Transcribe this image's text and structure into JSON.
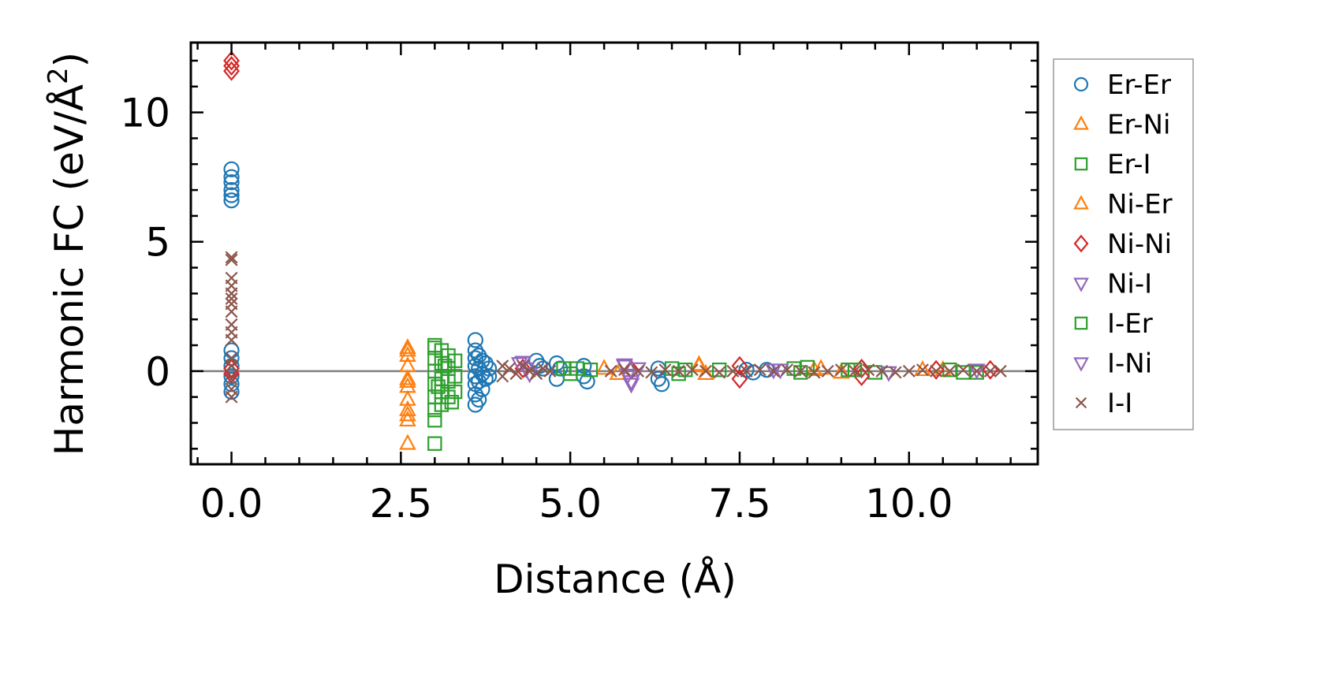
{
  "chart_data": {
    "type": "scatter",
    "title": "",
    "xlabel": "Distance (Å)",
    "ylabel": "Harmonic FC (eV/Å",
    "ylabel_superscript": "2",
    "ylabel_close": ")",
    "xlim": [
      -0.6,
      11.9
    ],
    "ylim": [
      -3.6,
      12.7
    ],
    "x_ticks": [
      0.0,
      2.5,
      5.0,
      7.5,
      10.0
    ],
    "x_tick_labels": [
      "0.0",
      "2.5",
      "5.0",
      "7.5",
      "10.0"
    ],
    "y_ticks": [
      0,
      5,
      10
    ],
    "y_tick_labels": [
      "0",
      "5",
      "10"
    ],
    "x_minor_step": 0.5,
    "y_minor_step": 1,
    "zero_line": true,
    "legend_position": "outside-right",
    "series": [
      {
        "name": "Er-Er",
        "marker": "circle",
        "color": "#1f77b4",
        "points": [
          [
            0,
            7.8
          ],
          [
            0,
            7.5
          ],
          [
            0,
            7.3
          ],
          [
            0,
            7.0
          ],
          [
            0,
            6.8
          ],
          [
            0,
            6.6
          ],
          [
            0,
            0.8
          ],
          [
            0,
            0.5
          ],
          [
            0,
            0.2
          ],
          [
            0,
            -0.2
          ],
          [
            0,
            -0.5
          ],
          [
            0,
            -0.8
          ],
          [
            3.6,
            1.2
          ],
          [
            3.6,
            0.8
          ],
          [
            3.6,
            0.5
          ],
          [
            3.6,
            0.2
          ],
          [
            3.6,
            -0.2
          ],
          [
            3.6,
            -0.5
          ],
          [
            3.6,
            -0.9
          ],
          [
            3.6,
            -1.3
          ],
          [
            3.65,
            0.6
          ],
          [
            3.65,
            0.1
          ],
          [
            3.65,
            -0.4
          ],
          [
            3.65,
            -1.1
          ],
          [
            3.7,
            0.4
          ],
          [
            3.7,
            -0.1
          ],
          [
            3.7,
            -0.7
          ],
          [
            3.75,
            0.3
          ],
          [
            3.75,
            -0.3
          ],
          [
            3.8,
            0.1
          ],
          [
            3.8,
            -0.2
          ],
          [
            4.5,
            0.4
          ],
          [
            4.55,
            0.2
          ],
          [
            4.6,
            0.1
          ],
          [
            4.8,
            0.3
          ],
          [
            4.8,
            -0.3
          ],
          [
            4.85,
            0.1
          ],
          [
            5.2,
            0.2
          ],
          [
            5.2,
            -0.2
          ],
          [
            5.25,
            -0.4
          ],
          [
            6.3,
            0.1
          ],
          [
            6.3,
            -0.3
          ],
          [
            6.35,
            -0.5
          ],
          [
            7.6,
            0.05
          ],
          [
            7.7,
            -0.05
          ],
          [
            7.9,
            0.05
          ]
        ]
      },
      {
        "name": "Er-Ni",
        "marker": "triangle-up",
        "color": "#ff7f0e",
        "points": [
          [
            2.6,
            0.9
          ],
          [
            2.6,
            0.6
          ],
          [
            2.6,
            0.2
          ],
          [
            2.6,
            -0.3
          ],
          [
            2.6,
            -0.6
          ],
          [
            2.6,
            -1.1
          ],
          [
            2.6,
            -1.5
          ],
          [
            2.6,
            -1.9
          ],
          [
            2.6,
            -2.8
          ],
          [
            5.5,
            0.1
          ],
          [
            5.7,
            -0.1
          ],
          [
            6.9,
            0.2
          ],
          [
            7.0,
            -0.1
          ],
          [
            8.6,
            0.05
          ],
          [
            9.0,
            -0.05
          ],
          [
            10.5,
            0.05
          ]
        ]
      },
      {
        "name": "Er-I",
        "marker": "square",
        "color": "#2ca02c",
        "points": [
          [
            3.0,
            1.0
          ],
          [
            3.0,
            0.5
          ],
          [
            3.0,
            0.0
          ],
          [
            3.0,
            -0.5
          ],
          [
            3.0,
            -1.0
          ],
          [
            3.0,
            -1.5
          ],
          [
            3.0,
            -1.9
          ],
          [
            3.0,
            -2.8
          ],
          [
            3.1,
            0.8
          ],
          [
            3.1,
            0.3
          ],
          [
            3.1,
            -0.3
          ],
          [
            3.1,
            -0.8
          ],
          [
            3.1,
            -1.3
          ],
          [
            3.2,
            0.6
          ],
          [
            3.2,
            0.1
          ],
          [
            3.2,
            -0.4
          ],
          [
            3.2,
            -1.0
          ],
          [
            3.3,
            0.4
          ],
          [
            3.3,
            -0.2
          ],
          [
            3.3,
            -0.8
          ],
          [
            4.9,
            0.1
          ],
          [
            5.0,
            -0.1
          ],
          [
            5.3,
            0.05
          ],
          [
            6.5,
            0.1
          ],
          [
            6.6,
            -0.1
          ],
          [
            7.2,
            0.05
          ],
          [
            8.3,
            0.1
          ],
          [
            8.4,
            -0.05
          ],
          [
            9.1,
            0.05
          ],
          [
            9.5,
            -0.05
          ],
          [
            10.6,
            0.05
          ],
          [
            11.0,
            -0.05
          ]
        ]
      },
      {
        "name": "Ni-Er",
        "marker": "triangle-up",
        "color": "#ff7f0e",
        "points": [
          [
            2.6,
            0.8
          ],
          [
            2.6,
            -0.4
          ],
          [
            2.6,
            -1.7
          ],
          [
            6.9,
            0.25
          ],
          [
            8.7,
            0.1
          ],
          [
            10.2,
            0.05
          ]
        ]
      },
      {
        "name": "Ni-Ni",
        "marker": "diamond",
        "color": "#d62728",
        "points": [
          [
            0,
            12.0
          ],
          [
            0,
            11.8
          ],
          [
            0,
            11.6
          ],
          [
            0,
            0.1
          ],
          [
            0,
            -0.1
          ],
          [
            4.3,
            0.1
          ],
          [
            5.9,
            0.05
          ],
          [
            7.5,
            0.2
          ],
          [
            7.5,
            -0.3
          ],
          [
            9.3,
            0.1
          ],
          [
            9.3,
            -0.2
          ],
          [
            10.4,
            0.05
          ],
          [
            11.2,
            0.05
          ]
        ]
      },
      {
        "name": "Ni-I",
        "marker": "triangle-down",
        "color": "#9467bd",
        "points": [
          [
            4.3,
            0.35
          ],
          [
            4.35,
            0.1
          ],
          [
            4.4,
            -0.1
          ],
          [
            5.8,
            0.25
          ],
          [
            5.85,
            -0.15
          ],
          [
            5.9,
            -0.5
          ],
          [
            6.0,
            0.1
          ],
          [
            8.0,
            0.05
          ],
          [
            9.7,
            -0.05
          ],
          [
            11.0,
            0.05
          ]
        ]
      },
      {
        "name": "I-Er",
        "marker": "square",
        "color": "#2ca02c",
        "points": [
          [
            3.0,
            0.9
          ],
          [
            3.05,
            -0.6
          ],
          [
            3.15,
            0.2
          ],
          [
            3.25,
            -1.2
          ],
          [
            5.1,
            0.1
          ],
          [
            6.7,
            0.05
          ],
          [
            8.5,
            0.15
          ],
          [
            9.2,
            0.05
          ],
          [
            10.8,
            -0.05
          ]
        ]
      },
      {
        "name": "I-Ni",
        "marker": "triangle-down",
        "color": "#9467bd",
        "points": [
          [
            4.25,
            0.3
          ],
          [
            5.8,
            0.2
          ],
          [
            5.9,
            -0.4
          ],
          [
            8.1,
            0.05
          ]
        ]
      },
      {
        "name": "I-I",
        "marker": "x",
        "color": "#8c564b",
        "points": [
          [
            0,
            4.4
          ],
          [
            0,
            4.3
          ],
          [
            0,
            3.6
          ],
          [
            0,
            3.3
          ],
          [
            0,
            3.0
          ],
          [
            0,
            2.8
          ],
          [
            0,
            2.6
          ],
          [
            0,
            2.3
          ],
          [
            0,
            1.8
          ],
          [
            0,
            1.5
          ],
          [
            0,
            1.2
          ],
          [
            0,
            0.5
          ],
          [
            0,
            0.2
          ],
          [
            0,
            -0.3
          ],
          [
            0,
            -0.7
          ],
          [
            0,
            -1.0
          ],
          [
            4.0,
            0.2
          ],
          [
            4.0,
            -0.2
          ],
          [
            4.1,
            0.1
          ],
          [
            4.2,
            -0.1
          ],
          [
            4.3,
            0.2
          ],
          [
            4.4,
            0.0
          ],
          [
            4.5,
            -0.1
          ],
          [
            4.6,
            0.1
          ],
          [
            4.7,
            0.0
          ],
          [
            5.6,
            0.0
          ],
          [
            5.8,
            0.05
          ],
          [
            6.0,
            0.0
          ],
          [
            6.2,
            -0.05
          ],
          [
            6.4,
            0.05
          ],
          [
            6.6,
            0.0
          ],
          [
            6.8,
            0.05
          ],
          [
            7.0,
            0.0
          ],
          [
            7.2,
            -0.05
          ],
          [
            7.4,
            0.0
          ],
          [
            7.6,
            0.0
          ],
          [
            7.8,
            0.05
          ],
          [
            8.0,
            0.0
          ],
          [
            8.2,
            0.05
          ],
          [
            8.4,
            0.0
          ],
          [
            8.6,
            -0.05
          ],
          [
            8.8,
            0.0
          ],
          [
            9.0,
            0.05
          ],
          [
            9.2,
            0.0
          ],
          [
            9.4,
            0.05
          ],
          [
            9.6,
            0.0
          ],
          [
            9.8,
            -0.05
          ],
          [
            10.0,
            0.0
          ],
          [
            10.2,
            0.05
          ],
          [
            10.4,
            0.0
          ],
          [
            10.6,
            0.0
          ],
          [
            10.8,
            0.05
          ],
          [
            11.0,
            0.0
          ],
          [
            11.2,
            0.0
          ],
          [
            11.35,
            0.0
          ]
        ]
      }
    ]
  }
}
